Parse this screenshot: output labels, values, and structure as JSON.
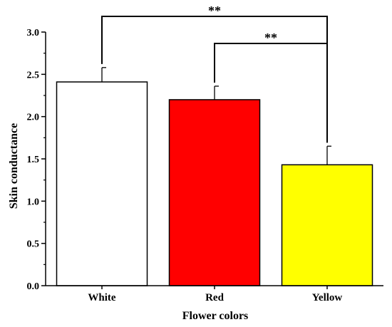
{
  "chart_data": {
    "type": "bar",
    "title": "",
    "xlabel": "Flower colors",
    "ylabel": "Skin conductance",
    "categories": [
      "White",
      "Red",
      "Yellow"
    ],
    "values": [
      2.41,
      2.2,
      1.43
    ],
    "errors": [
      0.17,
      0.16,
      0.22
    ],
    "bar_colors": [
      "#ffffff",
      "#ff0000",
      "#ffff00"
    ],
    "ylim": [
      0,
      3.0
    ],
    "yticks": [
      "0.0",
      "0.5",
      "1.0",
      "1.5",
      "2.0",
      "2.5",
      "3.0"
    ],
    "grid": false,
    "significance": [
      {
        "from": "White",
        "to": "Yellow",
        "label": "**"
      },
      {
        "from": "Red",
        "to": "Yellow",
        "label": "**"
      }
    ]
  }
}
